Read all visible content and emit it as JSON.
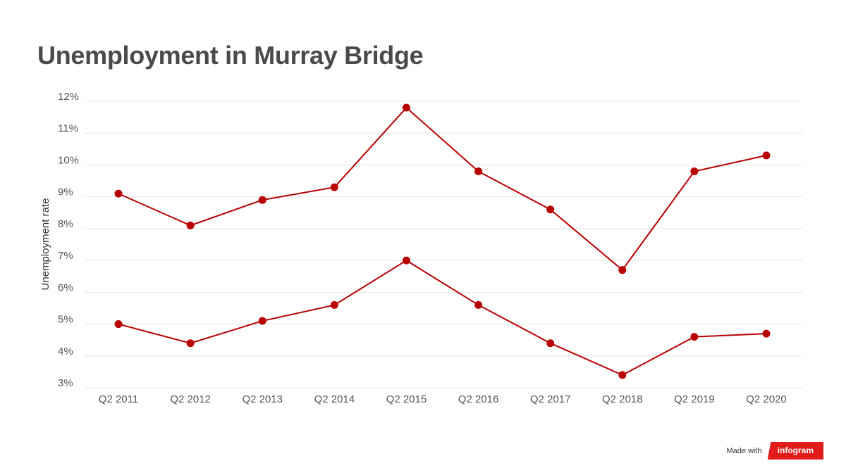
{
  "title": "Unemployment in Murray Bridge",
  "footer": {
    "made_with": "Made with",
    "brand": "infogram",
    "brand_color": "#e21b1b"
  },
  "chart_data": {
    "type": "line",
    "title": "Unemployment in Murray Bridge",
    "xlabel": "",
    "ylabel": "Unemployment rate",
    "ylim": [
      3,
      12
    ],
    "y_ticks": [
      "3%",
      "4%",
      "5%",
      "6%",
      "7%",
      "8%",
      "9%",
      "10%",
      "11%",
      "12%"
    ],
    "y_tick_values": [
      3,
      4,
      5,
      6,
      7,
      8,
      9,
      10,
      11,
      12
    ],
    "grid": true,
    "legend": "none",
    "series_color": "#b90000",
    "categories": [
      "Q2 2011",
      "Q2 2012",
      "Q2 2013",
      "Q2 2014",
      "Q2 2015",
      "Q2 2016",
      "Q2 2017",
      "Q2 2018",
      "Q2 2019",
      "Q2 2020"
    ],
    "series": [
      {
        "values": [
          9.1,
          8.1,
          8.9,
          9.3,
          11.8,
          9.8,
          8.6,
          6.7,
          9.8,
          10.3
        ]
      },
      {
        "values": [
          5.0,
          4.4,
          5.1,
          5.6,
          7.0,
          5.6,
          4.4,
          3.4,
          4.6,
          4.7
        ]
      }
    ]
  }
}
